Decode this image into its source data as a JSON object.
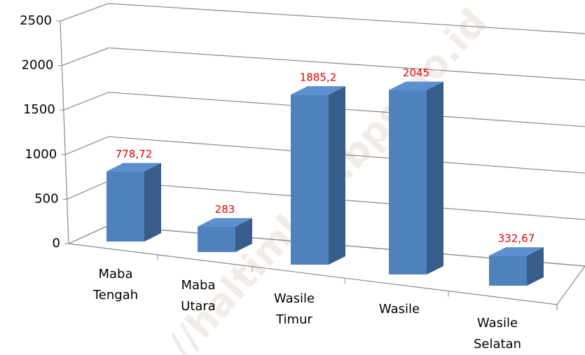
{
  "chart_data": {
    "type": "bar3d",
    "categories": [
      "Maba Tengah",
      "Maba Utara",
      "Wasile Timur",
      "Wasile",
      "Wasile Selatan"
    ],
    "values": [
      778.72,
      283,
      1885.2,
      2045,
      332.67
    ],
    "value_labels": [
      "778,72",
      "283",
      "1885,2",
      "2045",
      "332,67"
    ],
    "color": "#4f81bd",
    "ylim": [
      0,
      2500
    ],
    "yticks": [
      0,
      500,
      1000,
      1500,
      2000,
      2500
    ],
    "grid": true,
    "watermark": "//haltimkab.bps.go.id"
  }
}
